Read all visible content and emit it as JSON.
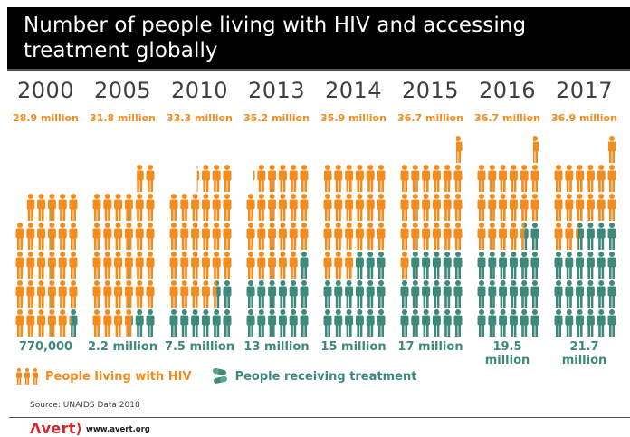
{
  "title": "Number of people living with HIV and accessing treatment globally",
  "chart_data": {
    "type": "pictogram",
    "title": "Number of people living with HIV and accessing treatment globally",
    "unit_per_icon": "1 million people",
    "categories": [
      "2000",
      "2005",
      "2010",
      "2013",
      "2014",
      "2015",
      "2016",
      "2017"
    ],
    "series": [
      {
        "name": "People living with HIV",
        "color": "#f28c1e",
        "values": [
          28.9,
          31.8,
          33.3,
          35.2,
          35.9,
          36.7,
          36.7,
          36.9
        ],
        "labels": [
          "28.9 million",
          "31.8 million",
          "33.3 million",
          "35.2 million",
          "35.9 million",
          "36.7 million",
          "36.7 million",
          "36.9 million"
        ]
      },
      {
        "name": "People receiving treatment",
        "color": "#3e8a7a",
        "values": [
          0.77,
          2.2,
          7.5,
          13,
          15,
          17,
          19.5,
          21.7
        ],
        "labels": [
          "770,000",
          "2.2 million",
          "7.5 million",
          "13 million",
          "15 million",
          "17 million",
          "19.5 million",
          "21.7 million"
        ]
      }
    ],
    "icons_per_row": 6,
    "legend": "bottom-left"
  },
  "legend": {
    "living_label": "People living with HIV",
    "living_icon": "people-icon",
    "treatment_label": "People receiving treatment",
    "treatment_icon": "pills-icon"
  },
  "source": "Source: UNAIDS Data 2018",
  "footer": {
    "logo": "Λvert⟩",
    "url": "www.avert.org"
  }
}
